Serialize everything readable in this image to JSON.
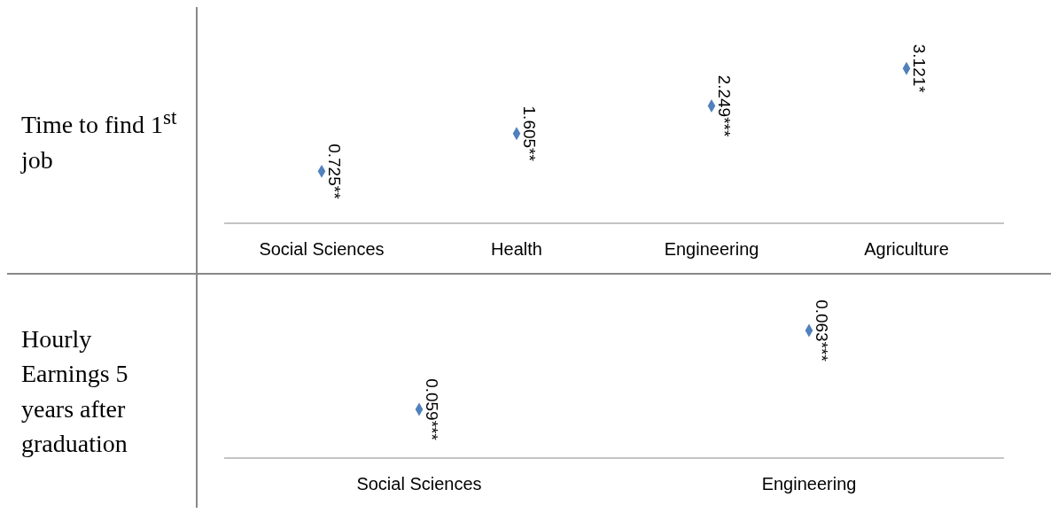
{
  "chart_data": [
    {
      "type": "scatter",
      "title": "Time to find 1$^{st}$ job",
      "categories": [
        "Social Sciences",
        "Health",
        "Engineering",
        "Agriculture"
      ],
      "values": [
        0.725,
        1.605,
        2.249,
        3.121
      ],
      "value_labels": [
        "0.725**",
        "1.605**",
        "2.249***",
        "3.121*"
      ],
      "color": "#4f81bd",
      "marker": "diamond"
    },
    {
      "type": "scatter",
      "title": "Hourly Earnings 5 years after graduation",
      "categories": [
        "Social Sciences",
        "Engineering"
      ],
      "values": [
        0.059,
        0.063
      ],
      "value_labels": [
        "0.059***",
        "0.063***"
      ],
      "color": "#4f81bd",
      "marker": "diamond"
    }
  ]
}
